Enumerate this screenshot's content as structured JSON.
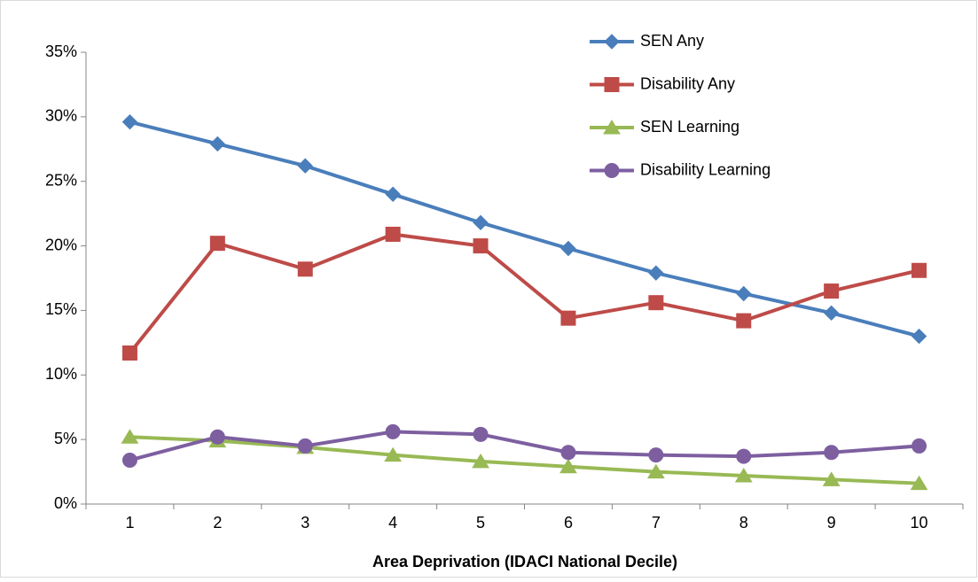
{
  "chart_data": {
    "type": "line",
    "x_label": "Area Deprivation (IDACI National Decile)",
    "categories": [
      "1",
      "2",
      "3",
      "4",
      "5",
      "6",
      "7",
      "8",
      "9",
      "10"
    ],
    "series": [
      {
        "name": "SEN Any",
        "color": "#4a7ebb",
        "marker": "diamond",
        "values": [
          29.6,
          27.9,
          26.2,
          24.0,
          21.8,
          19.8,
          17.9,
          16.3,
          14.8,
          13.0
        ]
      },
      {
        "name": "Disability Any",
        "color": "#be4b48",
        "marker": "square",
        "values": [
          11.7,
          20.2,
          18.2,
          20.9,
          20.0,
          14.4,
          15.6,
          14.2,
          16.5,
          18.1
        ]
      },
      {
        "name": "SEN Learning",
        "color": "#98b954",
        "marker": "triangle",
        "values": [
          5.2,
          4.9,
          4.4,
          3.8,
          3.3,
          2.9,
          2.5,
          2.2,
          1.9,
          1.6
        ]
      },
      {
        "name": "Disability Learning",
        "color": "#7d5fa0",
        "marker": "circle",
        "values": [
          3.4,
          5.2,
          4.5,
          5.6,
          5.4,
          4.0,
          3.8,
          3.7,
          4.0,
          4.5
        ]
      }
    ],
    "ylim": [
      0,
      35
    ],
    "yticks": [
      {
        "value": 0,
        "label": "0%"
      },
      {
        "value": 5,
        "label": "5%"
      },
      {
        "value": 10,
        "label": "10%"
      },
      {
        "value": 15,
        "label": "15%"
      },
      {
        "value": 20,
        "label": "20%"
      },
      {
        "value": 25,
        "label": "25%"
      },
      {
        "value": 30,
        "label": "30%"
      },
      {
        "value": 35,
        "label": "35%"
      }
    ],
    "grid": false,
    "legend": "top-right"
  }
}
